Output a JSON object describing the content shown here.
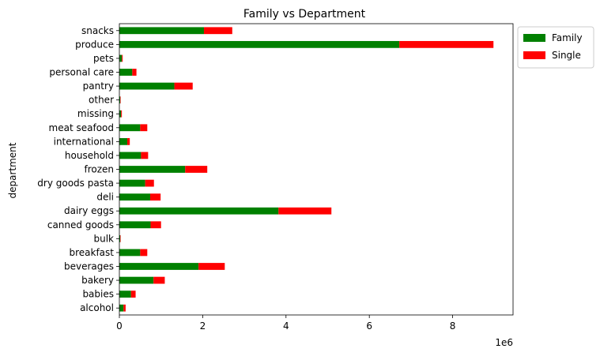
{
  "chart_data": {
    "type": "bar",
    "orientation": "horizontal",
    "stacked": true,
    "title": "Family vs Department",
    "ylabel": "department",
    "xlabel": "",
    "x_scale_note": "1e6",
    "xlim": [
      0,
      9.45
    ],
    "xticks": [
      0,
      2,
      4,
      6,
      8
    ],
    "categories": [
      "alcohol",
      "babies",
      "bakery",
      "beverages",
      "breakfast",
      "bulk",
      "canned goods",
      "dairy eggs",
      "deli",
      "dry goods pasta",
      "frozen",
      "household",
      "international",
      "meat seafood",
      "missing",
      "other",
      "pantry",
      "personal care",
      "pets",
      "produce",
      "snacks"
    ],
    "series": [
      {
        "name": "Family",
        "color": "#008000",
        "values": [
          0.1,
          0.28,
          0.82,
          1.9,
          0.5,
          0.02,
          0.75,
          3.82,
          0.74,
          0.62,
          1.58,
          0.52,
          0.19,
          0.5,
          0.04,
          0.02,
          1.32,
          0.31,
          0.06,
          6.72,
          2.03
        ]
      },
      {
        "name": "Single",
        "color": "#ff0000",
        "values": [
          0.05,
          0.11,
          0.27,
          0.63,
          0.17,
          0.01,
          0.25,
          1.27,
          0.25,
          0.21,
          0.53,
          0.17,
          0.06,
          0.17,
          0.02,
          0.01,
          0.44,
          0.1,
          0.02,
          2.26,
          0.68
        ]
      }
    ],
    "grid": false,
    "legend_position": "outside-top-right"
  }
}
